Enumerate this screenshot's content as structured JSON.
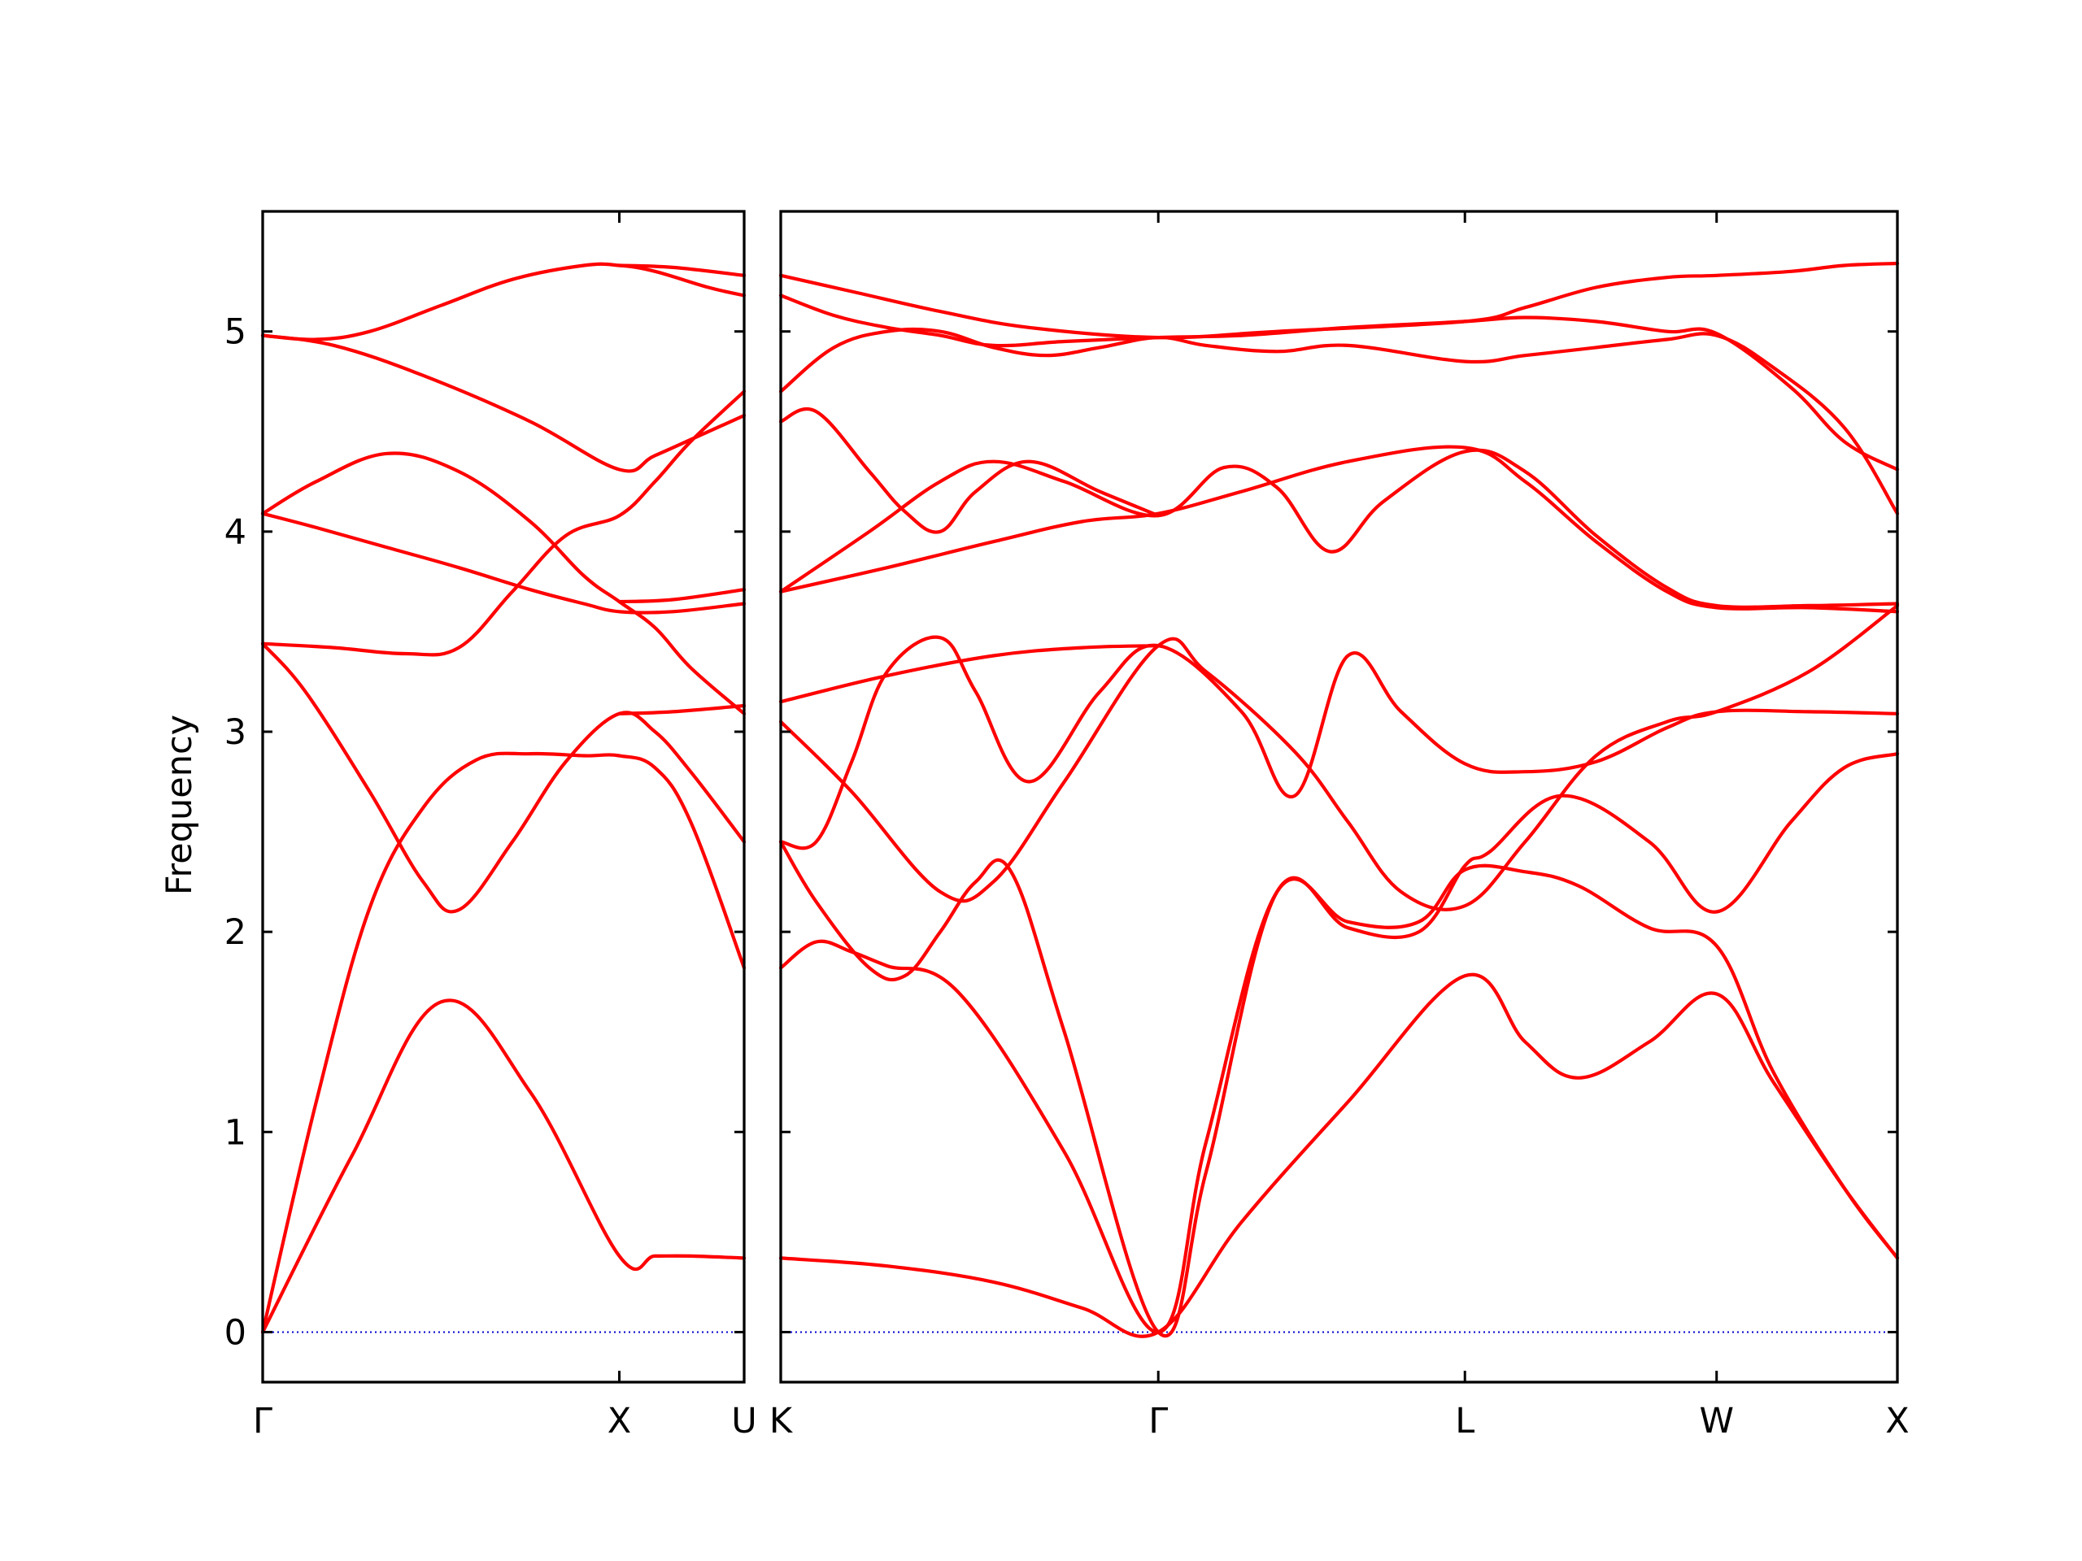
{
  "chart_data": {
    "type": "line",
    "ylabel": "Frequency",
    "ylim": [
      -0.25,
      5.6
    ],
    "yticks": [
      0,
      1,
      2,
      3,
      4,
      5
    ],
    "grid": false,
    "legend": "none",
    "colors": {
      "band": "#ff0000",
      "zero_line": "#0000cc",
      "axes": "#000000"
    },
    "panels": [
      {
        "x_range": [
          0,
          1.35
        ],
        "x_ticks": [
          {
            "label": "Γ",
            "x": 0
          },
          {
            "label": "X",
            "x": 1.0
          },
          {
            "label": "U",
            "x": 1.35
          }
        ],
        "series": [
          {
            "x": [
              0,
              0.25,
              0.5,
              0.75,
              1.0,
              1.1,
              1.2,
              1.35
            ],
            "values": [
              0,
              0.88,
              1.65,
              1.2,
              0.38,
              0.38,
              0.38,
              0.37
            ]
          },
          {
            "x": [
              0,
              0.15,
              0.3,
              0.45,
              0.6,
              0.75,
              0.9,
              1.0,
              1.1,
              1.2,
              1.35
            ],
            "values": [
              0,
              1.15,
              2.12,
              2.62,
              2.86,
              2.89,
              2.88,
              2.88,
              2.82,
              2.55,
              1.82
            ]
          },
          {
            "x": [
              0,
              0.12,
              0.3,
              0.45,
              0.55,
              0.7,
              0.85,
              1.0,
              1.1,
              1.2,
              1.35
            ],
            "values": [
              3.44,
              3.2,
              2.7,
              2.25,
              2.11,
              2.45,
              2.85,
              3.09,
              3.0,
              2.8,
              2.45
            ]
          },
          {
            "x": [
              0,
              0.2,
              0.4,
              0.55,
              0.7,
              0.85,
              1.0,
              1.1,
              1.2,
              1.35
            ],
            "values": [
              3.44,
              3.42,
              3.39,
              3.42,
              3.7,
              3.98,
              4.08,
              4.25,
              4.45,
              4.7
            ]
          },
          {
            "x": [
              0,
              0.15,
              0.35,
              0.55,
              0.75,
              0.9,
              1.0,
              1.15,
              1.35
            ],
            "values": [
              4.09,
              4.02,
              3.92,
              3.82,
              3.71,
              3.64,
              3.6,
              3.6,
              3.64
            ]
          },
          {
            "x": [
              0,
              0.15,
              0.35,
              0.55,
              0.75,
              0.9,
              1.0,
              1.1,
              1.2,
              1.35
            ],
            "values": [
              4.09,
              4.25,
              4.39,
              4.3,
              4.05,
              3.78,
              3.65,
              3.52,
              3.32,
              3.09
            ]
          },
          {
            "x": [
              0,
              0.2,
              0.45,
              0.75,
              1.0,
              1.1,
              1.25,
              1.35
            ],
            "values": [
              4.98,
              4.93,
              4.78,
              4.55,
              4.31,
              4.38,
              4.5,
              4.58
            ]
          },
          {
            "x": [
              0,
              0.15,
              0.3,
              0.5,
              0.7,
              0.9,
              1.0,
              1.1,
              1.25,
              1.35
            ],
            "values": [
              4.98,
              4.96,
              5.0,
              5.13,
              5.26,
              5.33,
              5.33,
              5.3,
              5.22,
              5.18
            ]
          }
        ],
        "extra_series": [
          {
            "x": [
              1.0,
              1.15,
              1.35
            ],
            "values": [
              3.09,
              3.1,
              3.13
            ]
          },
          {
            "x": [
              1.0,
              1.15,
              1.35
            ],
            "values": [
              3.65,
              3.66,
              3.71
            ]
          },
          {
            "x": [
              1.0,
              1.15,
              1.35
            ],
            "values": [
              5.33,
              5.32,
              5.28
            ]
          }
        ]
      },
      {
        "x_range": [
          0,
          3.15
        ],
        "x_ticks": [
          {
            "label": "K",
            "x": 0
          },
          {
            "label": "Γ",
            "x": 1.065
          },
          {
            "label": "L",
            "x": 1.93
          },
          {
            "label": "W",
            "x": 2.64
          },
          {
            "label": "X",
            "x": 3.15
          }
        ],
        "series": [
          {
            "x": [
              0,
              0.3,
              0.6,
              0.85,
              1.065,
              1.3,
              1.6,
              1.93,
              2.1,
              2.25,
              2.45,
              2.64,
              2.8,
              3.0,
              3.15
            ],
            "values": [
              0.37,
              0.33,
              0.25,
              0.12,
              0,
              0.55,
              1.15,
              1.78,
              1.45,
              1.27,
              1.45,
              1.69,
              1.25,
              0.72,
              0.37
            ]
          },
          {
            "x": [
              0,
              0.1,
              0.2,
              0.3,
              0.5,
              0.8,
              1.065,
              1.2,
              1.4,
              1.6,
              1.8,
              1.93,
              2.1,
              2.25,
              2.45,
              2.64,
              2.8,
              3.0,
              3.15
            ],
            "values": [
              1.82,
              1.95,
              1.9,
              1.83,
              1.7,
              0.9,
              0,
              0.95,
              2.2,
              2.05,
              2.05,
              2.31,
              2.3,
              2.23,
              2.02,
              1.93,
              1.3,
              0.72,
              0.37
            ]
          },
          {
            "x": [
              0,
              0.1,
              0.25,
              0.35,
              0.45,
              0.55,
              0.65,
              0.8,
              1.065,
              1.2,
              1.4,
              1.6,
              1.8,
              1.93,
              2.0,
              2.2,
              2.45,
              2.64,
              2.85,
              3.0,
              3.15
            ],
            "values": [
              2.45,
              2.15,
              1.82,
              1.78,
              2.0,
              2.25,
              2.3,
              1.5,
              0,
              0.8,
              2.2,
              2.02,
              2.0,
              2.33,
              2.4,
              2.68,
              2.45,
              2.1,
              2.55,
              2.82,
              2.89
            ]
          },
          {
            "x": [
              0,
              0.2,
              0.45,
              0.6,
              0.8,
              1.065,
              1.2,
              1.45,
              1.6,
              1.75,
              1.93,
              2.1,
              2.3,
              2.5,
              2.64,
              2.9,
              3.15
            ],
            "values": [
              3.05,
              2.7,
              2.2,
              2.25,
              2.75,
              3.43,
              3.3,
              2.9,
              2.55,
              2.2,
              2.13,
              2.45,
              2.88,
              3.05,
              3.1,
              3.3,
              3.63
            ]
          },
          {
            "x": [
              0,
              0.1,
              0.2,
              0.3,
              0.45,
              0.55,
              0.7,
              0.9,
              1.065,
              1.3,
              1.45,
              1.6,
              1.75,
              1.93,
              2.1,
              2.3,
              2.5,
              2.64,
              2.9,
              3.15
            ],
            "values": [
              2.45,
              2.45,
              2.85,
              3.3,
              3.47,
              3.2,
              2.75,
              3.2,
              3.43,
              3.1,
              2.68,
              3.38,
              3.1,
              2.84,
              2.8,
              2.85,
              3.02,
              3.1,
              3.1,
              3.09
            ]
          },
          {
            "x": [
              0,
              0.3,
              0.6,
              0.85,
              1.065
            ],
            "values": [
              3.15,
              3.28,
              3.38,
              3.42,
              3.43
            ]
          },
          {
            "x": [
              0,
              0.3,
              0.6,
              0.85,
              1.065,
              1.3,
              1.6,
              1.93,
              2.1,
              2.3,
              2.5,
              2.64,
              2.9,
              3.15
            ],
            "values": [
              3.7,
              3.82,
              3.95,
              4.05,
              4.09,
              4.2,
              4.35,
              4.42,
              4.25,
              3.95,
              3.7,
              3.62,
              3.62,
              3.6
            ]
          },
          {
            "x": [
              0,
              0.25,
              0.45,
              0.6,
              0.8,
              1.065,
              1.25,
              1.4,
              1.55,
              1.7,
              1.93,
              2.1,
              2.3,
              2.5,
              2.64,
              2.9,
              3.15
            ],
            "values": [
              3.7,
              4.0,
              4.25,
              4.35,
              4.25,
              4.08,
              4.32,
              4.22,
              3.9,
              4.15,
              4.4,
              4.3,
              3.98,
              3.72,
              3.63,
              3.63,
              3.64
            ]
          },
          {
            "x": [
              0,
              0.1,
              0.25,
              0.35,
              0.45,
              0.55,
              0.7,
              0.9,
              1.065
            ],
            "values": [
              4.55,
              4.6,
              4.3,
              4.1,
              4.0,
              4.2,
              4.35,
              4.2,
              4.08
            ]
          },
          {
            "x": [
              0,
              0.15,
              0.3,
              0.45,
              0.6,
              0.75,
              0.9,
              1.065,
              1.2,
              1.4,
              1.6,
              1.93,
              2.1,
              2.3,
              2.5,
              2.64,
              2.8,
              3.0,
              3.15
            ],
            "values": [
              4.7,
              4.92,
              5.0,
              5.0,
              4.92,
              4.88,
              4.92,
              4.97,
              4.93,
              4.9,
              4.93,
              4.85,
              4.88,
              4.92,
              4.96,
              4.98,
              4.82,
              4.52,
              4.09
            ]
          },
          {
            "x": [
              0,
              0.15,
              0.3,
              0.45,
              0.6,
              0.8,
              1.065,
              1.3,
              1.6,
              1.93,
              2.1,
              2.3,
              2.5,
              2.64,
              2.85,
              3.0,
              3.15
            ],
            "values": [
              5.18,
              5.08,
              5.02,
              4.98,
              4.93,
              4.95,
              4.97,
              4.98,
              5.02,
              5.05,
              5.07,
              5.05,
              5.0,
              4.99,
              4.72,
              4.45,
              4.31
            ]
          },
          {
            "x": [
              0,
              0.2,
              0.45,
              0.7,
              1.065,
              1.4,
              1.93,
              2.1,
              2.3,
              2.5,
              2.64,
              2.85,
              3.0,
              3.15
            ],
            "values": [
              5.28,
              5.2,
              5.1,
              5.02,
              4.97,
              5.0,
              5.05,
              5.12,
              5.22,
              5.27,
              5.28,
              5.3,
              5.33,
              5.34
            ]
          }
        ]
      }
    ]
  }
}
